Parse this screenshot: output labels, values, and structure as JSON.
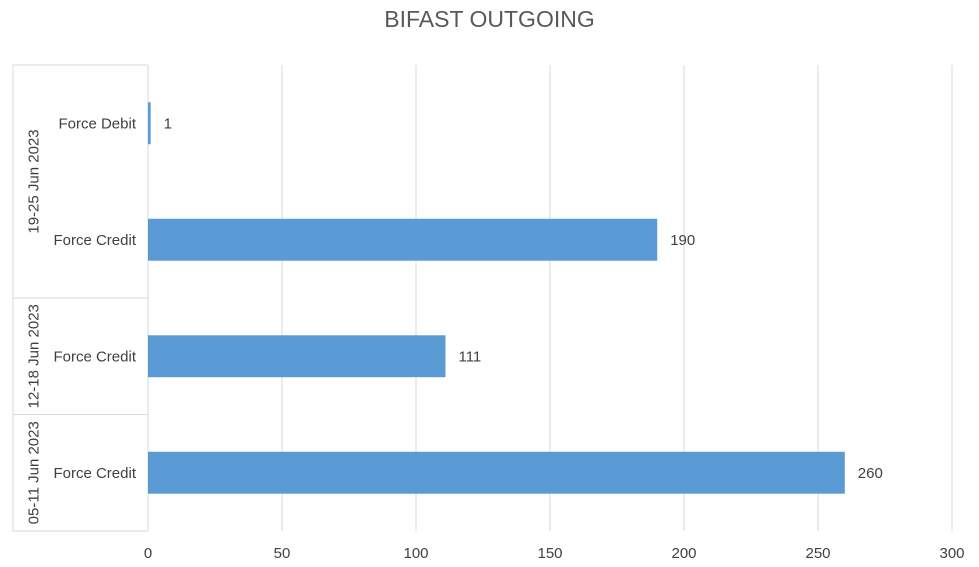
{
  "chart_data": {
    "type": "bar",
    "orientation": "horizontal",
    "title": "BIFAST OUTGOING",
    "groups": [
      {
        "name": "19-25 Jun 2023",
        "categories": [
          "Force Debit",
          "Force Credit"
        ],
        "values": [
          1,
          190
        ]
      },
      {
        "name": "12-18 Jun 2023",
        "categories": [
          "Force Credit"
        ],
        "values": [
          111
        ]
      },
      {
        "name": "05-11 Jun 2023",
        "categories": [
          "Force Credit"
        ],
        "values": [
          260
        ]
      }
    ],
    "xlim": [
      0,
      300
    ],
    "xticks": [
      0,
      50,
      100,
      150,
      200,
      250,
      300
    ],
    "grid": "vertical",
    "bar_color": "#5B9BD5",
    "data_labels": true
  }
}
